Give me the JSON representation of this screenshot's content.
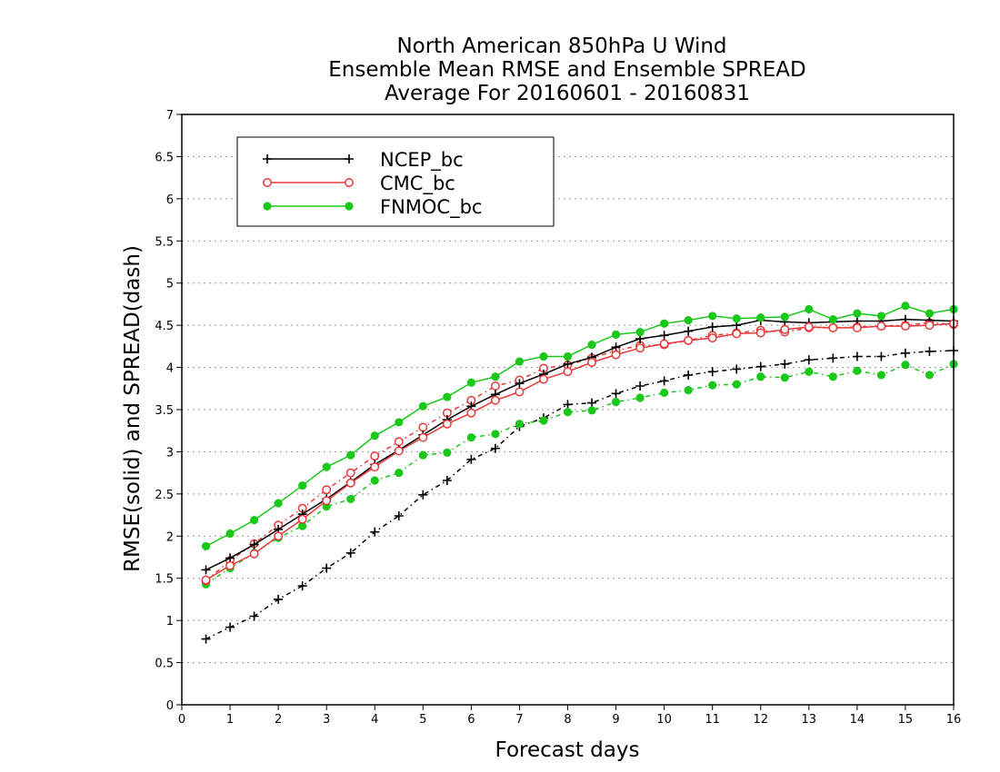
{
  "chart_data": {
    "type": "line",
    "title": [
      "North American 850hPa U Wind",
      "Ensemble Mean RMSE and Ensemble SPREAD",
      "Average For 20160601 - 20160831"
    ],
    "xlabel": "Forecast days",
    "ylabel": "RMSE(solid) and SPREAD(dash)",
    "xlim": [
      0,
      16
    ],
    "ylim": [
      0,
      7
    ],
    "xticks": [
      0,
      1,
      2,
      3,
      4,
      5,
      6,
      7,
      8,
      9,
      10,
      11,
      12,
      13,
      14,
      15,
      16
    ],
    "yticks": [
      0,
      0.5,
      1,
      1.5,
      2,
      2.5,
      3,
      3.5,
      4,
      4.5,
      5,
      5.5,
      6,
      6.5,
      7
    ],
    "grid": "horizontal dotted",
    "legend_position": "top-left",
    "x": [
      0.5,
      1,
      1.5,
      2,
      2.5,
      3,
      3.5,
      4,
      4.5,
      5,
      5.5,
      6,
      6.5,
      7,
      7.5,
      8,
      8.5,
      9,
      9.5,
      10,
      10.5,
      11,
      11.5,
      12,
      12.5,
      13,
      13.5,
      14,
      14.5,
      15,
      15.5,
      16
    ],
    "series": [
      {
        "name": "NCEP_bc",
        "metric": "RMSE",
        "style": "solid",
        "color": "#000000",
        "marker": "plus",
        "values": [
          1.6,
          1.74,
          1.9,
          2.08,
          2.26,
          2.44,
          2.64,
          2.85,
          3.02,
          3.2,
          3.38,
          3.54,
          3.68,
          3.81,
          3.92,
          4.04,
          4.12,
          4.24,
          4.34,
          4.38,
          4.43,
          4.48,
          4.5,
          4.56,
          4.54,
          4.53,
          4.54,
          4.55,
          4.55,
          4.57,
          4.56,
          4.55
        ]
      },
      {
        "name": "CMC_bc",
        "metric": "RMSE",
        "style": "solid",
        "color": "#e8393a",
        "marker": "open-circle",
        "values": [
          1.48,
          1.65,
          1.79,
          2.0,
          2.2,
          2.42,
          2.63,
          2.82,
          3.01,
          3.17,
          3.33,
          3.46,
          3.61,
          3.71,
          3.86,
          3.95,
          4.06,
          4.15,
          4.23,
          4.28,
          4.32,
          4.35,
          4.4,
          4.41,
          4.45,
          4.48,
          4.47,
          4.47,
          4.49,
          4.49,
          4.5,
          4.52
        ]
      },
      {
        "name": "FNMOC_bc",
        "metric": "RMSE",
        "style": "solid",
        "color": "#1ac81a",
        "marker": "filled-circle",
        "values": [
          1.88,
          2.03,
          2.19,
          2.39,
          2.6,
          2.82,
          2.96,
          3.19,
          3.35,
          3.54,
          3.65,
          3.82,
          3.89,
          4.07,
          4.13,
          4.13,
          4.27,
          4.39,
          4.42,
          4.52,
          4.56,
          4.61,
          4.58,
          4.59,
          4.6,
          4.69,
          4.57,
          4.64,
          4.61,
          4.73,
          4.64,
          4.69
        ]
      },
      {
        "name": "NCEP_bc",
        "metric": "SPREAD",
        "style": "dash",
        "color": "#000000",
        "marker": "plus",
        "values": [
          0.78,
          0.92,
          1.05,
          1.25,
          1.41,
          1.62,
          1.8,
          2.05,
          2.24,
          2.49,
          2.66,
          2.91,
          3.04,
          3.3,
          3.4,
          3.56,
          3.58,
          3.69,
          3.78,
          3.84,
          3.91,
          3.95,
          3.98,
          4.01,
          4.04,
          4.09,
          4.11,
          4.13,
          4.13,
          4.17,
          4.19,
          4.2
        ]
      },
      {
        "name": "CMC_bc",
        "metric": "SPREAD",
        "style": "dash",
        "color": "#e8393a",
        "marker": "open-circle",
        "values": [
          1.47,
          1.71,
          1.91,
          2.13,
          2.33,
          2.55,
          2.75,
          2.95,
          3.12,
          3.29,
          3.46,
          3.61,
          3.78,
          3.85,
          3.99,
          4.03,
          4.11,
          4.2,
          4.26,
          4.27,
          4.32,
          4.38,
          4.41,
          4.44,
          4.42,
          4.47,
          4.47,
          4.48,
          4.49,
          4.5,
          4.53,
          4.51
        ]
      },
      {
        "name": "FNMOC_bc",
        "metric": "SPREAD",
        "style": "dash",
        "color": "#1ac81a",
        "marker": "filled-circle",
        "values": [
          1.43,
          1.62,
          1.8,
          1.98,
          2.12,
          2.35,
          2.44,
          2.66,
          2.75,
          2.96,
          2.99,
          3.17,
          3.21,
          3.33,
          3.37,
          3.47,
          3.49,
          3.59,
          3.64,
          3.7,
          3.73,
          3.79,
          3.8,
          3.89,
          3.88,
          3.95,
          3.89,
          3.96,
          3.91,
          4.03,
          3.91,
          4.04
        ]
      }
    ],
    "legend": [
      {
        "name": "NCEP_bc",
        "color": "#000000",
        "marker": "plus"
      },
      {
        "name": "CMC_bc",
        "color": "#e8393a",
        "marker": "open-circle"
      },
      {
        "name": "FNMOC_bc",
        "color": "#1ac81a",
        "marker": "filled-circle"
      }
    ]
  }
}
